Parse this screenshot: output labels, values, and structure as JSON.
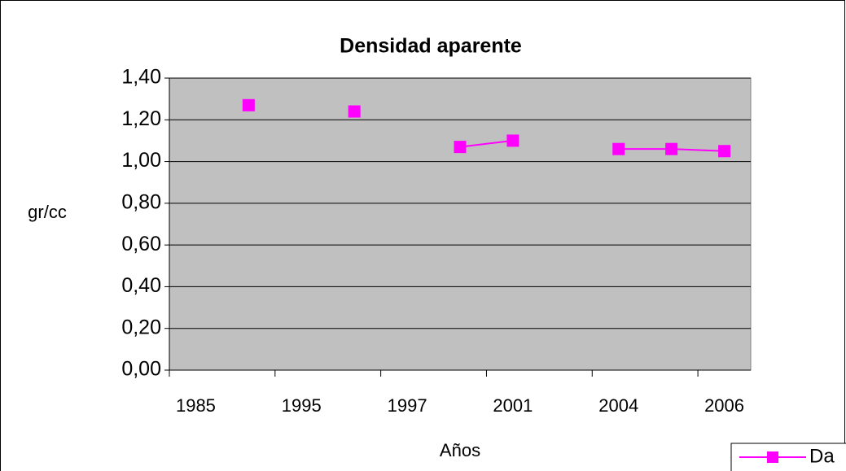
{
  "chart_data": {
    "type": "line",
    "title": "Densidad aparente",
    "x_label": "Años",
    "y_label": "gr/cc",
    "categories": [
      "1985",
      null,
      "1995",
      null,
      "1997",
      null,
      "2001",
      null,
      "2004",
      null,
      "2006"
    ],
    "series": [
      {
        "name": "Da",
        "color": "#ff00ff",
        "values": [
          null,
          1.27,
          null,
          1.24,
          null,
          1.07,
          1.1,
          null,
          1.06,
          1.06,
          1.05
        ]
      }
    ],
    "ylim": [
      0,
      1.4
    ],
    "yticks": [
      {
        "value": 0,
        "label": "0,00"
      },
      {
        "value": 0.2,
        "label": "0,20"
      },
      {
        "value": 0.4,
        "label": "0,40"
      },
      {
        "value": 0.6,
        "label": "0,60"
      },
      {
        "value": 0.8,
        "label": "0,80"
      },
      {
        "value": 1.0,
        "label": "1,00"
      },
      {
        "value": 1.2,
        "label": "1,20"
      },
      {
        "value": 1.4,
        "label": "1,40"
      }
    ],
    "grid": true,
    "plot_background": "#c0c0c0",
    "legend": "bottom-right"
  }
}
